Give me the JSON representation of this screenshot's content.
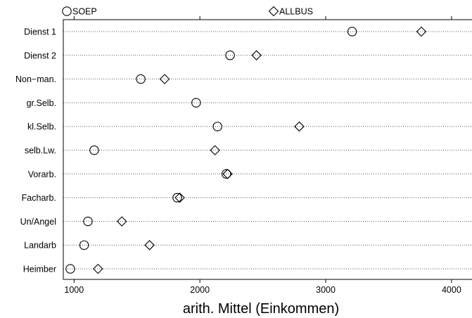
{
  "chart_data": {
    "type": "scatter",
    "style": "dot plot",
    "title": "",
    "xlabel": "arith. Mittel (Einkommen)",
    "ylabel": "",
    "xlim": [
      890,
      4170
    ],
    "xticks": [
      1000,
      2000,
      3000,
      4000
    ],
    "xtick_labels": [
      "1000",
      "2000",
      "3000",
      "4000"
    ],
    "grid": "dotted horizontal guide line per category",
    "legend_position": "top",
    "categories": [
      "Dienst 1",
      "Dienst 2",
      "Non−man.",
      "gr.Selb.",
      "kl.Selb.",
      "selb.Lw.",
      "Vorarb.",
      "Facharb.",
      "Un/Angel",
      "Landarb",
      "Heimber"
    ],
    "series": [
      {
        "name": "SOEP",
        "marker": "circle",
        "values": [
          3210,
          2240,
          1530,
          1970,
          2140,
          1160,
          2210,
          1820,
          1110,
          1080,
          970
        ]
      },
      {
        "name": "ALLBUS",
        "marker": "diamond",
        "values": [
          3760,
          2450,
          1720,
          null,
          2790,
          2120,
          2220,
          1840,
          1380,
          1600,
          1190
        ]
      }
    ]
  }
}
